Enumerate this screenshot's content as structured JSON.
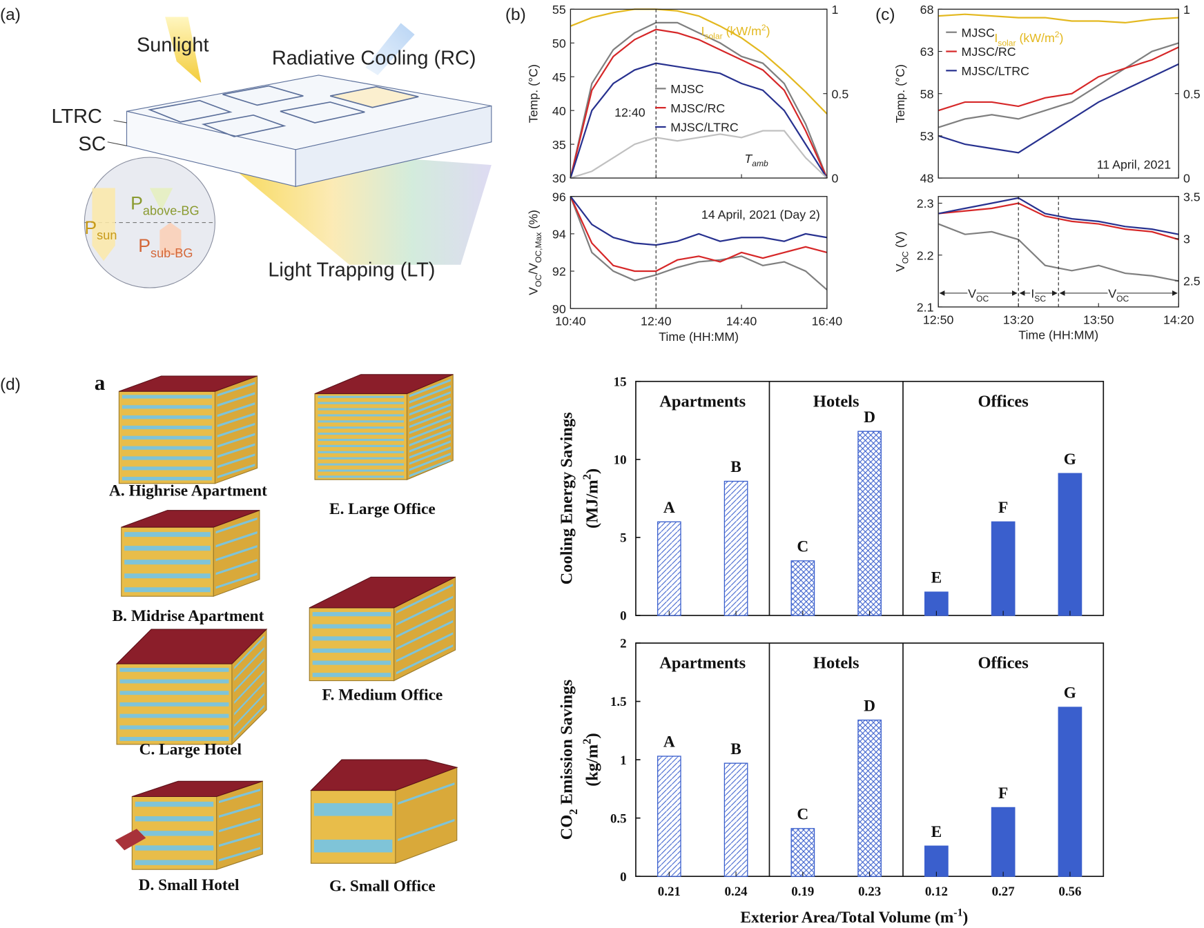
{
  "panel_labels": [
    "(a)",
    "(b)",
    "(c)",
    "(d)"
  ],
  "diagram": {
    "sunlight": "Sunlight",
    "rc": "Radiative Cooling (RC)",
    "ltrc": "LTRC",
    "sc": "SC",
    "p_above": [
      {
        "text": "P"
      },
      {
        "text": "above-BG",
        "script": "sub"
      }
    ],
    "p_sun": [
      {
        "text": "P"
      },
      {
        "text": "sun",
        "script": "sub"
      }
    ],
    "p_sub": [
      {
        "text": "P"
      },
      {
        "text": "sub-BG",
        "script": "sub"
      }
    ],
    "lt": "Light Trapping (LT)"
  },
  "buildings": {
    "panel": "a",
    "labels": [
      "A. Highrise Apartment",
      "B. Midrise Apartment",
      "C. Large Hotel",
      "D. Small Hotel",
      "E. Large Office",
      "F. Medium Office",
      "G. Small Office"
    ]
  },
  "chart_data": [
    {
      "type": "line",
      "ylabel": "Temp. (°C)",
      "ylim": [
        30,
        55
      ],
      "yticks": [
        30,
        35,
        40,
        45,
        50,
        55
      ],
      "y2lim": [
        0,
        1
      ],
      "y2ticks": [
        0,
        0.5,
        1
      ],
      "xlim": [
        640,
        1000
      ],
      "xticks": [
        640,
        760,
        880,
        1000
      ],
      "xtick_labels": false,
      "x": [
        640,
        670,
        700,
        730,
        760,
        790,
        820,
        850,
        880,
        910,
        940,
        970,
        1000
      ],
      "legend": "center",
      "vline": {
        "value": 760,
        "label": "12:40"
      },
      "series": [
        {
          "name": "MJSC",
          "color": "#7f7f7f",
          "values": [
            30,
            44,
            49,
            51.5,
            53,
            53,
            51.5,
            50,
            48,
            47,
            44,
            38,
            30
          ]
        },
        {
          "name": "MJSC/RC",
          "color": "#d62728",
          "values": [
            30,
            43,
            48,
            50.5,
            52,
            51.5,
            50.5,
            49,
            47.5,
            46,
            43,
            37,
            30
          ]
        },
        {
          "name": "MJSC/LTRC",
          "color": "#27318f",
          "values": [
            30,
            40,
            44,
            46,
            47,
            46.5,
            46,
            45.5,
            44,
            43,
            40,
            35,
            30
          ]
        },
        {
          "name": [
            {
              "text": "T"
            },
            {
              "text": "amb",
              "script": "sub"
            }
          ],
          "color": "#c0c0c0",
          "in_legend": false,
          "values": [
            30,
            31,
            33,
            35,
            36,
            35.5,
            36,
            36.5,
            36,
            37,
            37,
            33,
            30
          ]
        },
        {
          "name": [
            {
              "text": "I"
            },
            {
              "text": "solar",
              "script": "sub"
            },
            {
              "text": " (kW/m"
            },
            {
              "text": "2",
              "script": "sup"
            },
            {
              "text": ")"
            }
          ],
          "color": "#e3b81f",
          "axis": "y2",
          "in_legend": false,
          "values": [
            0.9,
            0.95,
            0.98,
            1.0,
            1.0,
            0.99,
            0.96,
            0.9,
            0.83,
            0.74,
            0.63,
            0.51,
            0.38
          ]
        }
      ]
    },
    {
      "type": "line",
      "ylabel": [
        {
          "text": "V"
        },
        {
          "text": "OC",
          "script": "sub"
        },
        {
          "text": "/V"
        },
        {
          "text": "OC,Max",
          "script": "sub"
        },
        {
          "text": " (%)"
        }
      ],
      "xlabel": "Time (HH:MM)",
      "ylim": [
        90,
        96
      ],
      "yticks": [
        90,
        92,
        94,
        96
      ],
      "xlim": [
        640,
        1000
      ],
      "xticks": [
        {
          "value": 640,
          "label": "10:40"
        },
        {
          "value": 760,
          "label": "12:40"
        },
        {
          "value": 880,
          "label": "14:40"
        },
        {
          "value": 1000,
          "label": "16:40"
        }
      ],
      "x": [
        640,
        670,
        700,
        730,
        760,
        790,
        820,
        850,
        880,
        910,
        940,
        970,
        1000
      ],
      "vlines": [
        760
      ],
      "note": "14 April, 2021 (Day 2)",
      "series": [
        {
          "name": "MJSC",
          "color": "#7f7f7f",
          "in_legend": false,
          "values": [
            96,
            93,
            92,
            91.5,
            91.8,
            92.2,
            92.5,
            92.6,
            92.8,
            92.3,
            92.5,
            92,
            91
          ]
        },
        {
          "name": "MJSC/RC",
          "color": "#d62728",
          "in_legend": false,
          "values": [
            96,
            93.5,
            92.3,
            92,
            92,
            92.6,
            92.8,
            92.5,
            93,
            92.7,
            93,
            93.3,
            93
          ]
        },
        {
          "name": "MJSC/LTRC",
          "color": "#27318f",
          "in_legend": false,
          "values": [
            96,
            94.5,
            93.8,
            93.5,
            93.4,
            93.6,
            94,
            93.6,
            93.8,
            93.8,
            93.6,
            94,
            93.8
          ]
        }
      ]
    },
    {
      "type": "line",
      "ylabel": "Temp. (°C)",
      "ylim": [
        48,
        68
      ],
      "yticks": [
        48,
        53,
        58,
        63,
        68
      ],
      "y2lim": [
        0,
        1
      ],
      "y2ticks": [
        0,
        0.5,
        1
      ],
      "xlim": [
        770,
        860
      ],
      "xticks": [
        770,
        800,
        830,
        860
      ],
      "xtick_labels": false,
      "x": [
        770,
        780,
        790,
        800,
        810,
        820,
        830,
        840,
        850,
        860
      ],
      "legend": "upper left",
      "note": "11 April, 2021",
      "series": [
        {
          "name": "MJSC",
          "color": "#7f7f7f",
          "values": [
            54,
            55,
            55.5,
            55,
            56,
            57,
            59,
            61,
            63,
            64
          ]
        },
        {
          "name": "MJSC/RC",
          "color": "#d62728",
          "values": [
            56,
            57,
            57,
            56.5,
            57.5,
            58,
            60,
            61,
            62,
            63.5
          ]
        },
        {
          "name": "MJSC/LTRC",
          "color": "#27318f",
          "values": [
            53,
            52,
            51.5,
            51,
            53,
            55,
            57,
            58.5,
            60,
            61.5
          ]
        },
        {
          "name": [
            {
              "text": "I"
            },
            {
              "text": "solar",
              "script": "sub"
            },
            {
              "text": " (kW/m"
            },
            {
              "text": "2",
              "script": "sup"
            },
            {
              "text": ")"
            }
          ],
          "color": "#e3b81f",
          "axis": "y2",
          "in_legend": false,
          "values": [
            0.96,
            0.97,
            0.96,
            0.95,
            0.95,
            0.93,
            0.93,
            0.92,
            0.94,
            0.95
          ]
        }
      ]
    },
    {
      "type": "line",
      "ylabel": [
        {
          "text": "V"
        },
        {
          "text": "OC",
          "script": "sub"
        },
        {
          "text": " (V)"
        }
      ],
      "xlabel": "Time (HH:MM)",
      "ylim": [
        2.1,
        2.313
      ],
      "yticks": [
        2.1,
        2.2,
        2.3
      ],
      "y2lim": [
        2.19,
        3.5
      ],
      "y2ticks": [
        2.5,
        3,
        3.5
      ],
      "xlim": [
        770,
        860
      ],
      "xticks": [
        {
          "value": 770,
          "label": "12:50"
        },
        {
          "value": 800,
          "label": "13:20"
        },
        {
          "value": 830,
          "label": "13:50"
        },
        {
          "value": 860,
          "label": "14:20"
        }
      ],
      "x": [
        770,
        780,
        790,
        800,
        810,
        820,
        830,
        840,
        850,
        860
      ],
      "vlines": [
        800,
        815
      ],
      "phases": [
        {
          "label": [
            {
              "text": "V"
            },
            {
              "text": "OC",
              "script": "sub"
            }
          ],
          "from": 770,
          "to": 800
        },
        {
          "label": [
            {
              "text": "I"
            },
            {
              "text": "SC",
              "script": "sub"
            }
          ],
          "from": 800,
          "to": 815
        },
        {
          "label": [
            {
              "text": "V"
            },
            {
              "text": "OC",
              "script": "sub"
            }
          ],
          "from": 815,
          "to": 860
        }
      ],
      "series": [
        {
          "name": "MJSC",
          "color": "#7f7f7f",
          "in_legend": false,
          "values": [
            2.26,
            2.24,
            2.245,
            2.23,
            2.18,
            2.17,
            2.18,
            2.165,
            2.16,
            2.15
          ]
        },
        {
          "name": "MJSC/RC",
          "color": "#d62728",
          "in_legend": false,
          "values": [
            2.28,
            2.285,
            2.29,
            2.3,
            2.275,
            2.265,
            2.26,
            2.25,
            2.245,
            2.23
          ]
        },
        {
          "name": "MJSC/LTRC",
          "color": "#27318f",
          "in_legend": false,
          "values": [
            2.28,
            2.29,
            2.3,
            2.31,
            2.28,
            2.27,
            2.265,
            2.255,
            2.25,
            2.24
          ]
        }
      ]
    },
    {
      "type": "bar",
      "ylabel": [
        "Cooling Energy Savings",
        [
          {
            "text": "(MJ/m"
          },
          {
            "text": "2",
            "script": "sup"
          },
          {
            "text": ")"
          }
        ]
      ],
      "ylim": [
        0,
        15
      ],
      "yticks": [
        0,
        5,
        10,
        15
      ],
      "values": [
        6.0,
        8.6,
        3.5,
        11.8,
        1.5,
        6.0,
        9.1
      ],
      "bar_labels": [
        "A",
        "B",
        "C",
        "D",
        "E",
        "F",
        "G"
      ],
      "color": "#3a5fcd",
      "fills": [
        "diagonal",
        "diagonal",
        "cross",
        "cross",
        "solid",
        "solid",
        "solid"
      ],
      "groups": [
        {
          "name": "Apartments",
          "size": 2
        },
        {
          "name": "Hotels",
          "size": 2
        },
        {
          "name": "Offices",
          "size": 3
        }
      ]
    },
    {
      "type": "bar",
      "ylabel": [
        [
          {
            "text": "CO"
          },
          {
            "text": "2",
            "script": "sub"
          },
          {
            "text": " Emission Savings"
          }
        ],
        [
          {
            "text": "(kg/m"
          },
          {
            "text": "2",
            "script": "sup"
          },
          {
            "text": ")"
          }
        ]
      ],
      "xlabel": [
        {
          "text": "Exterior Area/Total Volume (m"
        },
        {
          "text": "-1",
          "script": "sup"
        },
        {
          "text": ")"
        }
      ],
      "ylim": [
        0,
        2
      ],
      "yticks": [
        0,
        0.5,
        1,
        1.5,
        2
      ],
      "values": [
        1.03,
        0.97,
        0.41,
        1.34,
        0.26,
        0.59,
        1.45
      ],
      "categories": [
        "0.21",
        "0.24",
        "0.19",
        "0.23",
        "0.12",
        "0.27",
        "0.56"
      ],
      "bar_labels": [
        "A",
        "B",
        "C",
        "D",
        "E",
        "F",
        "G"
      ],
      "color": "#3a5fcd",
      "fills": [
        "diagonal",
        "diagonal",
        "cross",
        "cross",
        "solid",
        "solid",
        "solid"
      ],
      "groups": [
        {
          "name": "Apartments",
          "size": 2
        },
        {
          "name": "Hotels",
          "size": 2
        },
        {
          "name": "Offices",
          "size": 3
        }
      ]
    }
  ]
}
